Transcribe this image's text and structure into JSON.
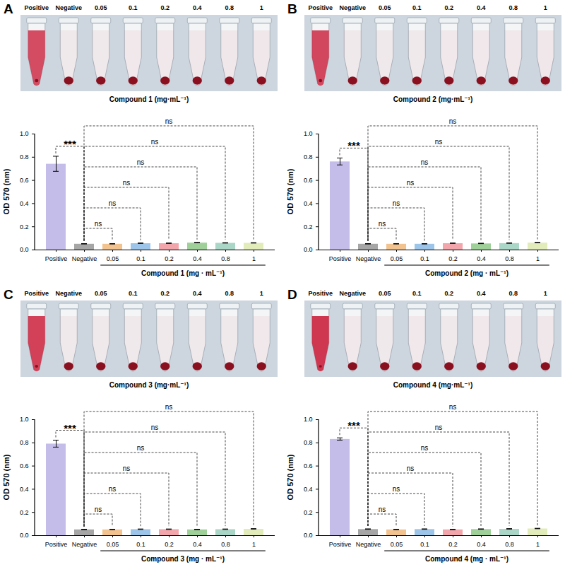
{
  "chart_data": [
    {
      "type": "bar",
      "panel": "A",
      "photo": {
        "labels": [
          "Positive",
          "Negative",
          "0.05",
          "0.1",
          "0.2",
          "0.4",
          "0.8",
          "1"
        ],
        "caption": "Compound 1 (mg·mL⁻¹)"
      },
      "categories": [
        "Positive",
        "Negative",
        "0.05",
        "0.1",
        "0.2",
        "0.4",
        "0.8",
        "1"
      ],
      "values": [
        0.74,
        0.05,
        0.05,
        0.055,
        0.055,
        0.06,
        0.058,
        0.058
      ],
      "errors": [
        0.065,
        0.002,
        0.002,
        0.002,
        0.002,
        0.002,
        0.002,
        0.002
      ],
      "colors": [
        "#c5bde9",
        "#a6a6a6",
        "#f3c38f",
        "#9cc5e9",
        "#f2a5aa",
        "#9fd09a",
        "#a9d6c6",
        "#e2ebba"
      ],
      "ylabel": "OD 570 (nm)",
      "groups": [
        {
          "label": "Compound 1 (mg · mL⁻¹)",
          "categories": [
            "0.05",
            "0.1",
            "0.2",
            "0.4",
            "0.8",
            "1"
          ]
        }
      ],
      "comparisons": [
        {
          "pair": [
            "Positive",
            "Negative"
          ],
          "label": "***"
        },
        {
          "pair": [
            "Negative",
            "0.05"
          ],
          "label": "ns"
        },
        {
          "pair": [
            "Negative",
            "0.1"
          ],
          "label": "ns"
        },
        {
          "pair": [
            "Negative",
            "0.2"
          ],
          "label": "ns"
        },
        {
          "pair": [
            "Negative",
            "0.4"
          ],
          "label": "ns"
        },
        {
          "pair": [
            "Negative",
            "0.8"
          ],
          "label": "ns"
        },
        {
          "pair": [
            "Negative",
            "1"
          ],
          "label": "ns"
        }
      ],
      "ylim": [
        0,
        1
      ],
      "yticks": [
        {
          "value": 0,
          "label": "0.0"
        },
        {
          "value": 0.2,
          "label": "0.2"
        },
        {
          "value": 0.4,
          "label": "0.4"
        },
        {
          "value": 0.6,
          "label": "0.6"
        },
        {
          "value": 0.8,
          "label": "0.8"
        },
        {
          "value": 1,
          "label": "1.0"
        }
      ]
    },
    {
      "type": "bar",
      "panel": "B",
      "photo": {
        "labels": [
          "Positive",
          "Negative",
          "0.05",
          "0.1",
          "0.2",
          "0.4",
          "0.8",
          "1"
        ],
        "caption": "Compound 2 (mg·mL⁻¹)"
      },
      "categories": [
        "Positive",
        "Negative",
        "0.05",
        "0.1",
        "0.2",
        "0.4",
        "0.8",
        "1"
      ],
      "values": [
        0.76,
        0.05,
        0.05,
        0.05,
        0.055,
        0.053,
        0.056,
        0.06
      ],
      "errors": [
        0.03,
        0.002,
        0.002,
        0.002,
        0.002,
        0.002,
        0.002,
        0.002
      ],
      "colors": [
        "#c5bde9",
        "#a6a6a6",
        "#f3c38f",
        "#9cc5e9",
        "#f2a5aa",
        "#9fd09a",
        "#a9d6c6",
        "#e2ebba"
      ],
      "ylabel": "OD 570 (nm)",
      "groups": [
        {
          "label": "Compound 2 (mg · mL⁻¹)",
          "categories": [
            "0.05",
            "0.1",
            "0.2",
            "0.4",
            "0.8",
            "1"
          ]
        }
      ],
      "comparisons": [
        {
          "pair": [
            "Positive",
            "Negative"
          ],
          "label": "***"
        },
        {
          "pair": [
            "Negative",
            "0.05"
          ],
          "label": "ns"
        },
        {
          "pair": [
            "Negative",
            "0.1"
          ],
          "label": "ns"
        },
        {
          "pair": [
            "Negative",
            "0.2"
          ],
          "label": "ns"
        },
        {
          "pair": [
            "Negative",
            "0.4"
          ],
          "label": "ns"
        },
        {
          "pair": [
            "Negative",
            "0.8"
          ],
          "label": "ns"
        },
        {
          "pair": [
            "Negative",
            "1"
          ],
          "label": "ns"
        }
      ],
      "ylim": [
        0,
        1
      ],
      "yticks": [
        {
          "value": 0,
          "label": "0.0"
        },
        {
          "value": 0.2,
          "label": "0.2"
        },
        {
          "value": 0.4,
          "label": "0.4"
        },
        {
          "value": 0.6,
          "label": "0.6"
        },
        {
          "value": 0.8,
          "label": "0.8"
        },
        {
          "value": 1,
          "label": "1.0"
        }
      ]
    },
    {
      "type": "bar",
      "panel": "C",
      "photo": {
        "labels": [
          "Positive",
          "Negative",
          "0.05",
          "0.1",
          "0.2",
          "0.4",
          "0.8",
          "1"
        ],
        "caption": "Compound 3 (mg·mL⁻¹)"
      },
      "categories": [
        "Positive",
        "Negative",
        "0.05",
        "0.1",
        "0.2",
        "0.4",
        "0.8",
        "1"
      ],
      "values": [
        0.79,
        0.05,
        0.05,
        0.052,
        0.052,
        0.05,
        0.052,
        0.055
      ],
      "errors": [
        0.03,
        0.002,
        0.002,
        0.002,
        0.002,
        0.002,
        0.002,
        0.002
      ],
      "colors": [
        "#c5bde9",
        "#a6a6a6",
        "#f3c38f",
        "#9cc5e9",
        "#f2a5aa",
        "#9fd09a",
        "#a9d6c6",
        "#e2ebba"
      ],
      "ylabel": "OD 570 (nm)",
      "groups": [
        {
          "label": "Compound 3 (mg · mL⁻¹)",
          "categories": [
            "0.05",
            "0.1",
            "0.2",
            "0.4",
            "0.8",
            "1"
          ]
        }
      ],
      "comparisons": [
        {
          "pair": [
            "Positive",
            "Negative"
          ],
          "label": "***"
        },
        {
          "pair": [
            "Negative",
            "0.05"
          ],
          "label": "ns"
        },
        {
          "pair": [
            "Negative",
            "0.1"
          ],
          "label": "ns"
        },
        {
          "pair": [
            "Negative",
            "0.2"
          ],
          "label": "ns"
        },
        {
          "pair": [
            "Negative",
            "0.4"
          ],
          "label": "ns"
        },
        {
          "pair": [
            "Negative",
            "0.8"
          ],
          "label": "ns"
        },
        {
          "pair": [
            "Negative",
            "1"
          ],
          "label": "ns"
        }
      ],
      "ylim": [
        0,
        1
      ],
      "yticks": [
        {
          "value": 0,
          "label": "0.0"
        },
        {
          "value": 0.2,
          "label": "0.2"
        },
        {
          "value": 0.4,
          "label": "0.4"
        },
        {
          "value": 0.6,
          "label": "0.6"
        },
        {
          "value": 0.8,
          "label": "0.8"
        },
        {
          "value": 1,
          "label": "1.0"
        }
      ]
    },
    {
      "type": "bar",
      "panel": "D",
      "photo": {
        "labels": [
          "Positive",
          "Negative",
          "0.05",
          "0.1",
          "0.2",
          "0.4",
          "0.8",
          "1"
        ],
        "caption": "Compound 4 (mg·mL⁻¹)"
      },
      "categories": [
        "Positive",
        "Negative",
        "0.05",
        "0.1",
        "0.2",
        "0.4",
        "0.8",
        "1"
      ],
      "values": [
        0.83,
        0.053,
        0.05,
        0.053,
        0.05,
        0.053,
        0.055,
        0.058
      ],
      "errors": [
        0.01,
        0.002,
        0.002,
        0.002,
        0.002,
        0.002,
        0.002,
        0.002
      ],
      "colors": [
        "#c5bde9",
        "#a6a6a6",
        "#f3c38f",
        "#9cc5e9",
        "#f2a5aa",
        "#9fd09a",
        "#a9d6c6",
        "#e2ebba"
      ],
      "ylabel": "OD 570 (nm)",
      "groups": [
        {
          "label": "Compound 4 (mg · mL⁻¹)",
          "categories": [
            "0.05",
            "0.1",
            "0.2",
            "0.4",
            "0.8",
            "1"
          ]
        }
      ],
      "comparisons": [
        {
          "pair": [
            "Positive",
            "Negative"
          ],
          "label": "***"
        },
        {
          "pair": [
            "Negative",
            "0.05"
          ],
          "label": "ns"
        },
        {
          "pair": [
            "Negative",
            "0.1"
          ],
          "label": "ns"
        },
        {
          "pair": [
            "Negative",
            "0.2"
          ],
          "label": "ns"
        },
        {
          "pair": [
            "Negative",
            "0.4"
          ],
          "label": "ns"
        },
        {
          "pair": [
            "Negative",
            "0.8"
          ],
          "label": "ns"
        },
        {
          "pair": [
            "Negative",
            "1"
          ],
          "label": "ns"
        }
      ],
      "ylim": [
        0,
        1
      ],
      "yticks": [
        {
          "value": 0,
          "label": "0.0"
        },
        {
          "value": 0.2,
          "label": "0.2"
        },
        {
          "value": 0.4,
          "label": "0.4"
        },
        {
          "value": 0.6,
          "label": "0.6"
        },
        {
          "value": 0.8,
          "label": "0.8"
        },
        {
          "value": 1,
          "label": "1.0"
        }
      ]
    }
  ]
}
